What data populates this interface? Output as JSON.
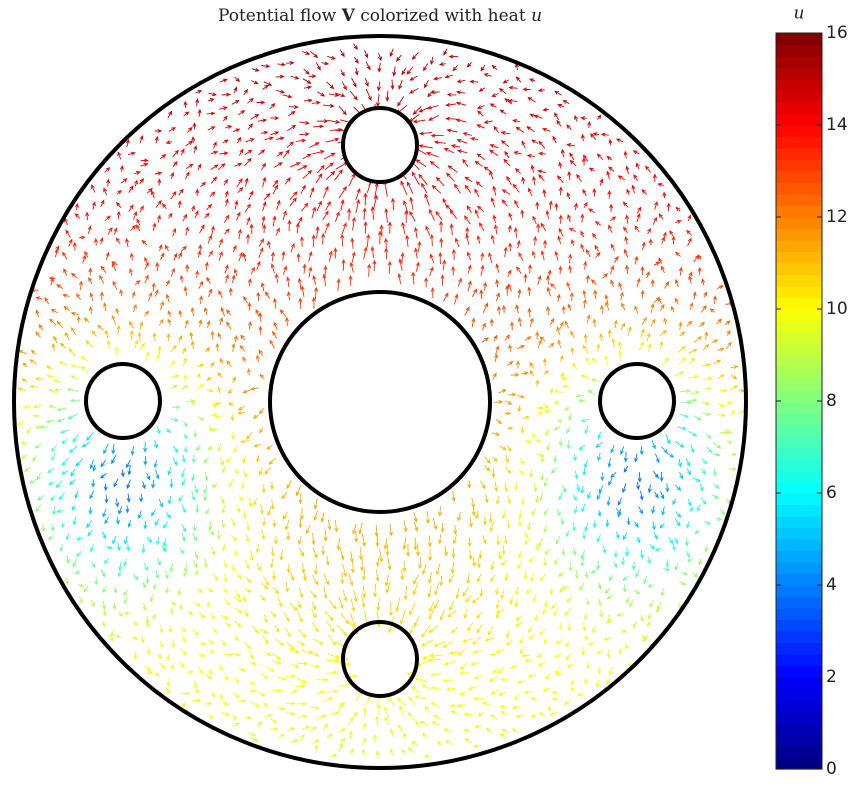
{
  "chart_data": {
    "type": "quiver",
    "title": [
      "Potential flow",
      "V",
      "colorized with heat",
      "u"
    ],
    "colorbar": {
      "label": "u",
      "colormap": "jet",
      "clim": [
        0,
        16
      ],
      "ticks": [
        0,
        2,
        4,
        6,
        8,
        10,
        12,
        14,
        16
      ]
    }
  }
}
